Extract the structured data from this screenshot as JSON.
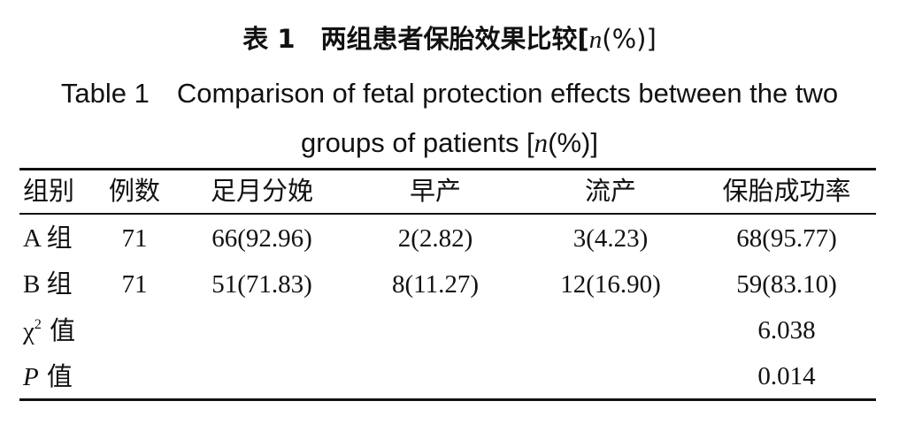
{
  "title": {
    "cn_prefix": "表 1　两组患者保胎效果比较[",
    "cn_n": "n",
    "cn_suffix": "(%)]",
    "en_line1": "Table 1　Comparison of fetal protection effects between the two",
    "en_line2_prefix": "groups of patients [",
    "en_line2_n": "n",
    "en_line2_suffix": "(%)]"
  },
  "table": {
    "headers": [
      "组别",
      "例数",
      "足月分娩",
      "早产",
      "流产",
      "保胎成功率"
    ],
    "rows": [
      {
        "group": "A 组",
        "n": "71",
        "full_term": "66(92.96)",
        "preterm": "2(2.82)",
        "miscarriage": "3(4.23)",
        "success": "68(95.77)"
      },
      {
        "group": "B 组",
        "n": "71",
        "full_term": "51(71.83)",
        "preterm": "8(11.27)",
        "miscarriage": "12(16.90)",
        "success": "59(83.10)"
      }
    ],
    "chi2": {
      "label_symbol": "χ",
      "label_sup": "2",
      "label_suffix": " 值",
      "value": "6.038"
    },
    "p": {
      "label_symbol": "P",
      "label_suffix": " 值",
      "value": "0.014"
    }
  }
}
